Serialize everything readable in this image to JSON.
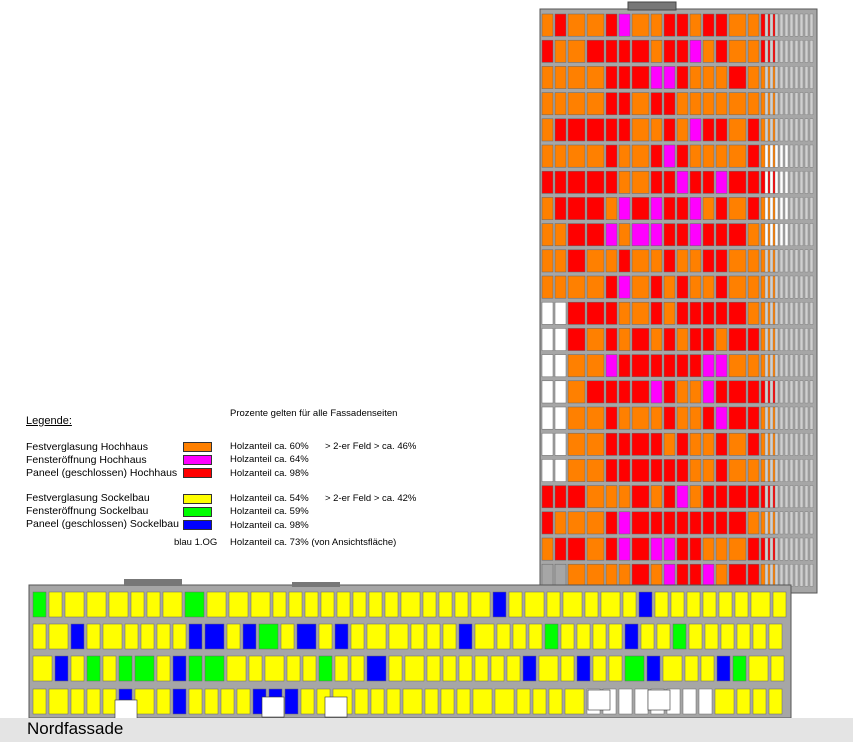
{
  "legend": {
    "title": "Legende:",
    "note": "Prozente gelten für alle Fassadenseiten",
    "items": [
      {
        "label": "Festverglasung Hochhaus",
        "color": "#ff8000",
        "value": "Holzanteil ca. 60%",
        "extra": "> 2-er Feld > ca. 46%"
      },
      {
        "label": "Fensteröffnung Hochhaus",
        "color": "#ff00ff",
        "value": "Holzanteil ca. 64%",
        "extra": ""
      },
      {
        "label": "Paneel (geschlossen) Hochhaus",
        "color": "#ff0000",
        "value": "Holzanteil ca. 98%",
        "extra": ""
      },
      {
        "label": "Festverglasung Sockelbau",
        "color": "#ffff00",
        "value": "Holzanteil ca. 54%",
        "extra": "> 2-er Feld > ca. 42%"
      },
      {
        "label": "Fensteröffnung Sockelbau",
        "color": "#00ff00",
        "value": "Holzanteil ca. 59%",
        "extra": ""
      },
      {
        "label": "Paneel (geschlossen) Sockelbau",
        "color": "#0000ff",
        "value": "Holzanteil ca. 98%",
        "extra": ""
      }
    ],
    "extra_note": {
      "label": "blau 1.OG",
      "value": "Holzanteil ca. 73% (von Ansichtsfläche)"
    }
  },
  "footer": {
    "title": "Nordfassade"
  },
  "colors": {
    "frame": "#a6a6a6",
    "glazing_tower": "#ff8000",
    "opening_tower": "#ff00ff",
    "panel_tower": "#ff0000",
    "glazing_base": "#ffff00",
    "opening_base": "#00ff00",
    "panel_base": "#0000ff",
    "footer_band": "#e4e4e4"
  }
}
